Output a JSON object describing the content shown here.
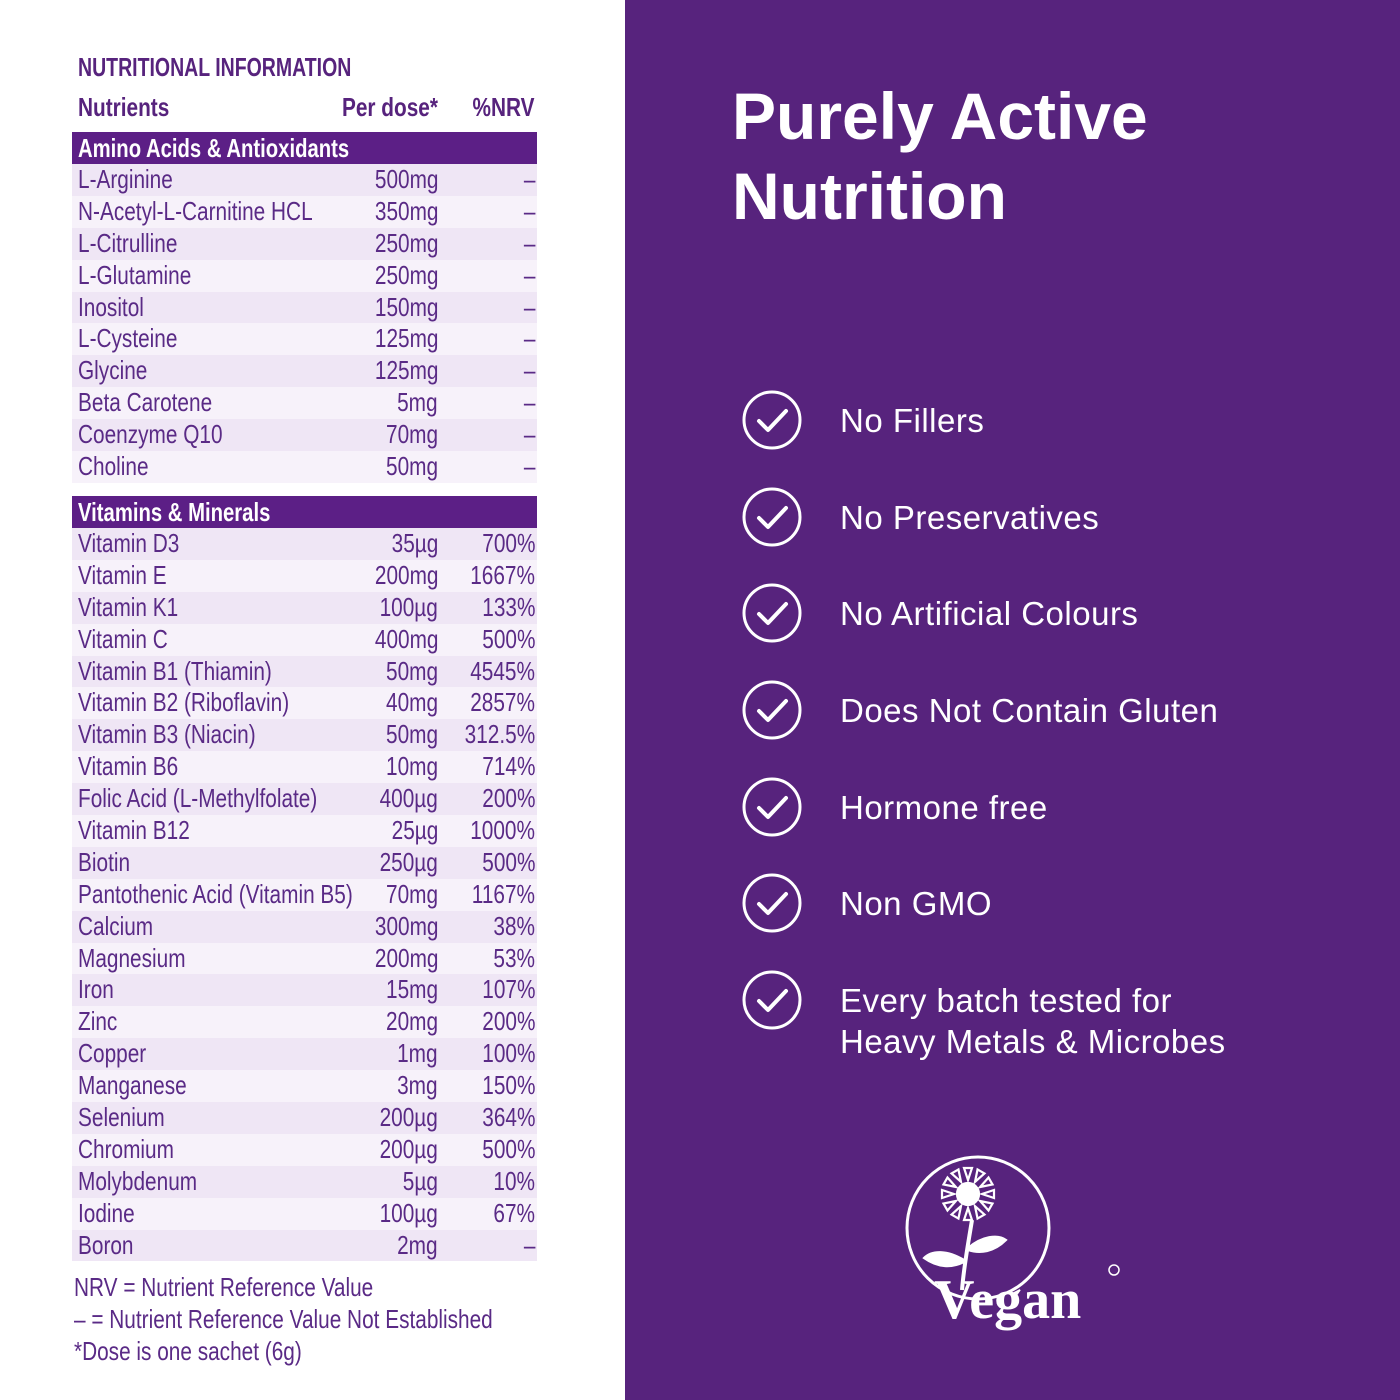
{
  "nutrition": {
    "title": "NUTRITIONAL INFORMATION",
    "columns": {
      "nutrients": "Nutrients",
      "dose": "Per dose*",
      "nrv": "%NRV"
    },
    "sections": [
      {
        "title": "Amino Acids & Antioxidants",
        "rows": [
          {
            "name": "L-Arginine",
            "dose": "500mg",
            "nrv": "–"
          },
          {
            "name": "N-Acetyl-L-Carnitine HCL",
            "dose": "350mg",
            "nrv": "–"
          },
          {
            "name": "L-Citrulline",
            "dose": "250mg",
            "nrv": "–"
          },
          {
            "name": "L-Glutamine",
            "dose": "250mg",
            "nrv": "–"
          },
          {
            "name": "Inositol",
            "dose": "150mg",
            "nrv": "–"
          },
          {
            "name": "L-Cysteine",
            "dose": "125mg",
            "nrv": "–"
          },
          {
            "name": "Glycine",
            "dose": "125mg",
            "nrv": "–"
          },
          {
            "name": "Beta Carotene",
            "dose": "5mg",
            "nrv": "–"
          },
          {
            "name": "Coenzyme Q10",
            "dose": "70mg",
            "nrv": "–"
          },
          {
            "name": "Choline",
            "dose": "50mg",
            "nrv": "–"
          }
        ]
      },
      {
        "title": "Vitamins & Minerals",
        "rows": [
          {
            "name": "Vitamin D3",
            "dose": "35µg",
            "nrv": "700%"
          },
          {
            "name": "Vitamin E",
            "dose": "200mg",
            "nrv": "1667%"
          },
          {
            "name": "Vitamin K1",
            "dose": "100µg",
            "nrv": "133%"
          },
          {
            "name": "Vitamin C",
            "dose": "400mg",
            "nrv": "500%"
          },
          {
            "name": "Vitamin B1 (Thiamin)",
            "dose": "50mg",
            "nrv": "4545%"
          },
          {
            "name": "Vitamin B2 (Riboflavin)",
            "dose": "40mg",
            "nrv": "2857%"
          },
          {
            "name": "Vitamin B3 (Niacin)",
            "dose": "50mg",
            "nrv": "312.5%"
          },
          {
            "name": "Vitamin B6",
            "dose": "10mg",
            "nrv": "714%"
          },
          {
            "name": "Folic Acid (L-Methylfolate)",
            "dose": "400µg",
            "nrv": "200%"
          },
          {
            "name": "Vitamin B12",
            "dose": "25µg",
            "nrv": "1000%"
          },
          {
            "name": "Biotin",
            "dose": "250µg",
            "nrv": "500%"
          },
          {
            "name": "Pantothenic Acid (Vitamin B5)",
            "dose": "70mg",
            "nrv": "1167%"
          },
          {
            "name": "Calcium",
            "dose": "300mg",
            "nrv": "38%"
          },
          {
            "name": "Magnesium",
            "dose": "200mg",
            "nrv": "53%"
          },
          {
            "name": "Iron",
            "dose": "15mg",
            "nrv": "107%"
          },
          {
            "name": "Zinc",
            "dose": "20mg",
            "nrv": "200%"
          },
          {
            "name": "Copper",
            "dose": "1mg",
            "nrv": "100%"
          },
          {
            "name": "Manganese",
            "dose": "3mg",
            "nrv": "150%"
          },
          {
            "name": "Selenium",
            "dose": "200µg",
            "nrv": "364%"
          },
          {
            "name": "Chromium",
            "dose": "200µg",
            "nrv": "500%"
          },
          {
            "name": "Molybdenum",
            "dose": "5µg",
            "nrv": "10%"
          },
          {
            "name": "Iodine",
            "dose": "100µg",
            "nrv": "67%"
          },
          {
            "name": "Boron",
            "dose": "2mg",
            "nrv": "–"
          }
        ]
      }
    ],
    "footnotes": [
      "NRV = Nutrient Reference Value",
      "– = Nutrient Reference Value Not Established",
      "*Dose is one sachet (6g)"
    ]
  },
  "headline": {
    "line1": "Purely Active",
    "line2": "Nutrition"
  },
  "features": [
    {
      "icon": "check-circle-icon",
      "lines": [
        "No Fillers"
      ]
    },
    {
      "icon": "check-circle-icon",
      "lines": [
        "No Preservatives"
      ]
    },
    {
      "icon": "check-circle-icon",
      "lines": [
        "No Artificial Colours"
      ]
    },
    {
      "icon": "check-circle-icon",
      "lines": [
        "Does Not Contain Gluten"
      ]
    },
    {
      "icon": "check-circle-icon",
      "lines": [
        "Hormone free"
      ]
    },
    {
      "icon": "check-circle-icon",
      "lines": [
        "Non GMO"
      ]
    },
    {
      "icon": "check-circle-icon",
      "lines": [
        "Every batch tested for",
        "Heavy Metals & Microbes"
      ]
    }
  ],
  "vegan_logo": {
    "text": "Vegan",
    "icon": "vegan-sunflower-icon"
  },
  "colors": {
    "purple_panel": "#57237d",
    "section_header": "#5c1f86",
    "text_purple": "#5a2a86",
    "row_stripe": "#efe6f5"
  }
}
